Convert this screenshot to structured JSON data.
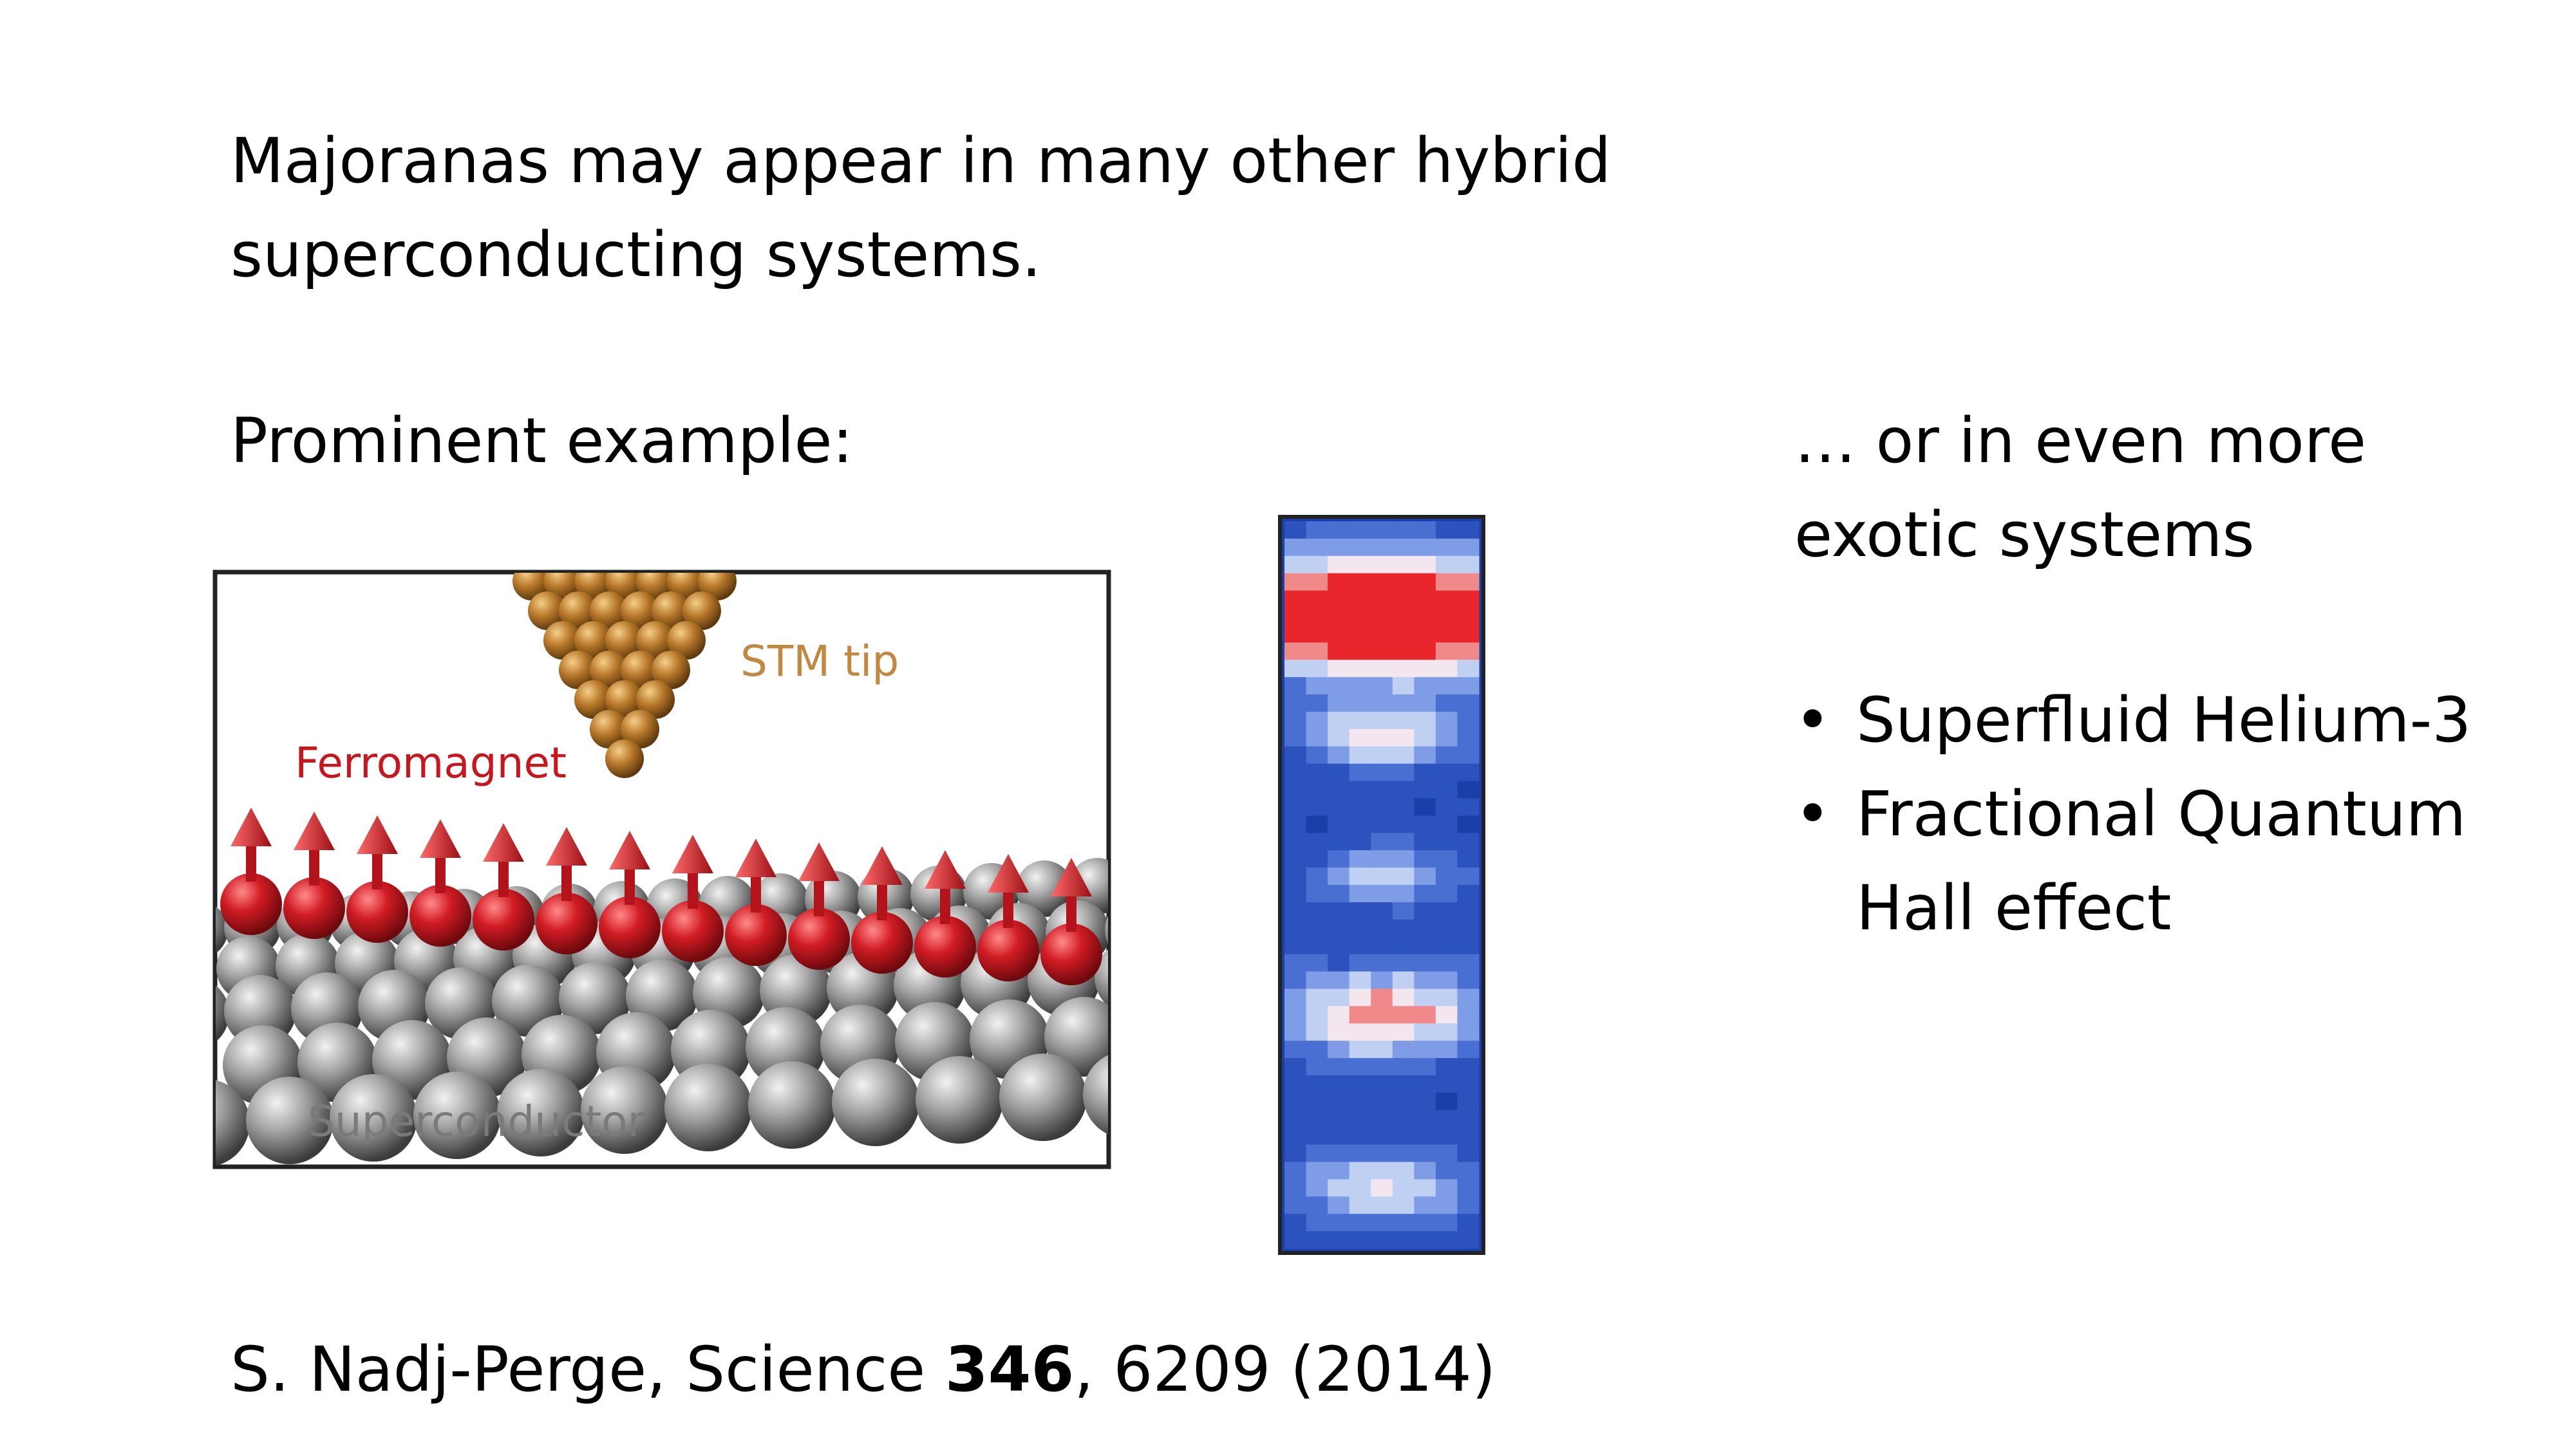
{
  "intro": {
    "line1": "Majoranas may appear in many other hybrid",
    "line2": "superconducting systems."
  },
  "example_label": "Prominent example:",
  "figure": {
    "stm_tip_label": "STM tip",
    "ferromagnet_label": "Ferromagnet",
    "superconductor_label": "Superconductor",
    "colors": {
      "tip": "#b8782a",
      "ferromagnet": "#d11c24",
      "substrate": "#8c8c8c",
      "heatmap_bg": "#1b3fa8",
      "heatmap_hot": "#e8262c"
    }
  },
  "exotic": {
    "line1": "… or in even more",
    "line2": "exotic systems"
  },
  "bullets": [
    {
      "lines": [
        "Superfluid Helium-3"
      ]
    },
    {
      "lines": [
        "Fractional Quantum",
        "Hall effect"
      ]
    }
  ],
  "citation": {
    "prefix": "S. Nadj-Perge, Science ",
    "volume": "346",
    "suffix": ", 6209 (2014)"
  }
}
